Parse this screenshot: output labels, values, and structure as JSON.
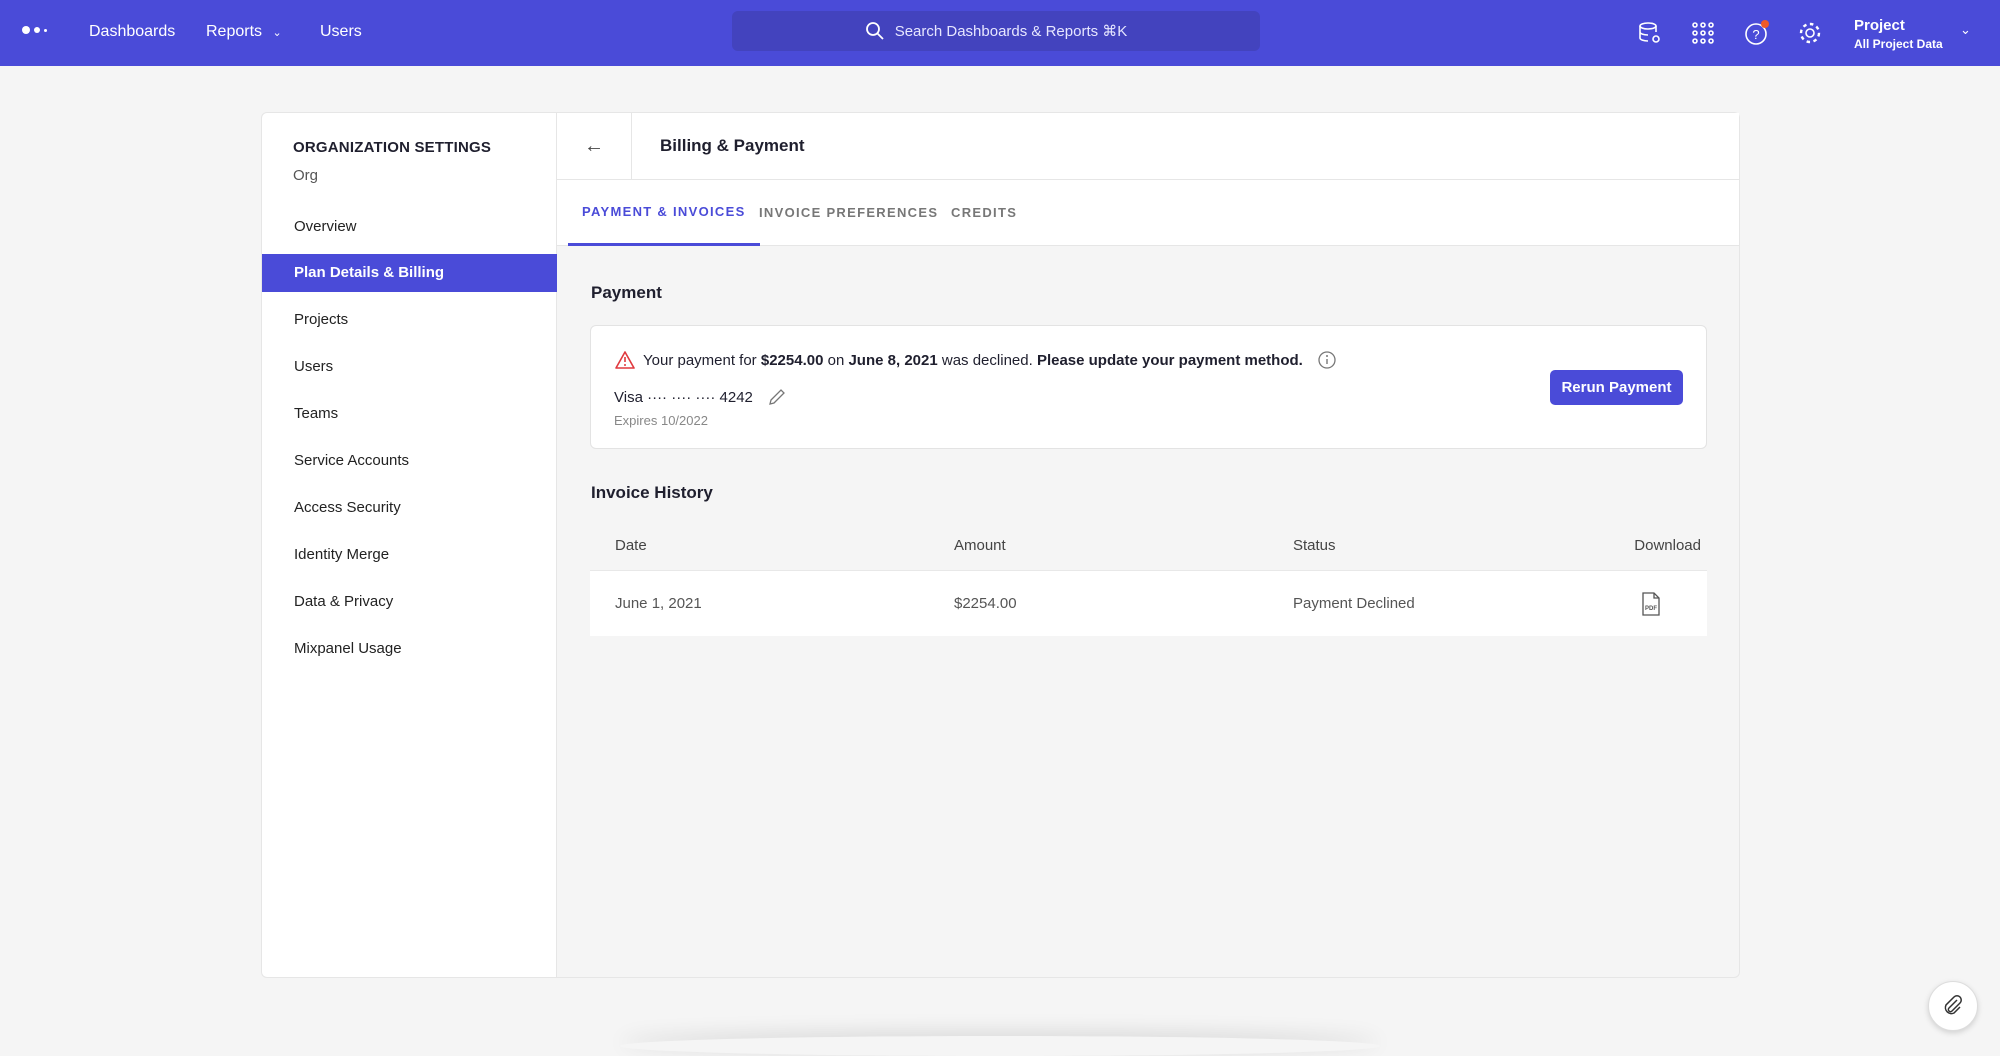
{
  "topbar": {
    "nav": [
      "Dashboards",
      "Reports",
      "Users"
    ],
    "search_placeholder": "Search Dashboards & Reports ⌘K",
    "project_label": "Project",
    "project_sub": "All Project Data",
    "accent": "#4a4bd8",
    "notification_color": "#f05a28"
  },
  "sidebar": {
    "title": "ORGANIZATION SETTINGS",
    "org": "Org",
    "items": [
      {
        "label": "Overview"
      },
      {
        "label": "Plan Details & Billing",
        "active": true
      },
      {
        "label": "Projects"
      },
      {
        "label": "Users"
      },
      {
        "label": "Teams"
      },
      {
        "label": "Service Accounts"
      },
      {
        "label": "Access Security"
      },
      {
        "label": "Identity Merge"
      },
      {
        "label": "Data & Privacy"
      },
      {
        "label": "Mixpanel Usage"
      }
    ]
  },
  "main": {
    "title": "Billing & Payment",
    "tabs": [
      "PAYMENT & INVOICES",
      "INVOICE PREFERENCES",
      "CREDITS"
    ],
    "payment": {
      "heading": "Payment",
      "msg_1": "Your payment for",
      "amount": "$2254.00",
      "msg_2": "on",
      "date": "June 8, 2021",
      "msg_3": "was declined.",
      "msg_4": "Please update your payment method.",
      "card": "Visa ···· ···· ···· 4242",
      "expires": "Expires 10/2022",
      "button": "Rerun Payment"
    },
    "invoices": {
      "heading": "Invoice History",
      "columns": [
        "Date",
        "Amount",
        "Status",
        "Download"
      ],
      "rows": [
        {
          "date": "June 1, 2021",
          "amount": "$2254.00",
          "status": "Payment Declined",
          "download": "pdf-icon"
        }
      ]
    }
  }
}
